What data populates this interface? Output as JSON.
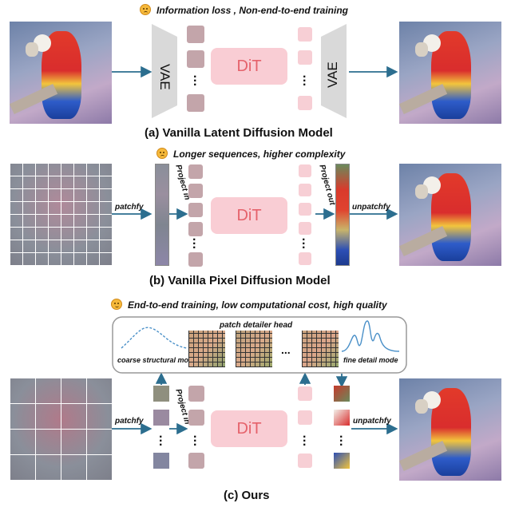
{
  "panel_a": {
    "note": "Information loss , Non-end-to-end training",
    "encoder_label": "VAE",
    "decoder_label": "VAE",
    "dit_label": "DiT",
    "caption": "(a) Vanilla Latent Diffusion Model"
  },
  "panel_b": {
    "note": "Longer sequences, higher complexity",
    "patchfy_label": "patchfy",
    "project_in_label": "Project in",
    "project_out_label": "Project out",
    "dit_label": "DiT",
    "unpatchfy_label": "unpatchfy",
    "caption": "(b) Vanilla Pixel Diffusion Model"
  },
  "panel_c": {
    "note": "End-to-end training, low computational cost, high quality",
    "head_title": "patch detailer head",
    "coarse_label": "coarse structural mode",
    "fine_label": "fine detail mode",
    "ellipsis": "...",
    "patchfy_label": "patchfy",
    "project_in_label": "Project in",
    "dit_label": "DiT",
    "unpatchfy_label": "unpatchfy",
    "caption": "(c) Ours"
  },
  "colors": {
    "arrow": "#2c6e8f",
    "dit_fill": "#f9cdd4",
    "dit_text": "#e5626b",
    "vae_fill": "#d9d9d9",
    "latent_token": "#c3a5aa",
    "pixel_token": "#f7cfd5",
    "curve": "#4a90c8"
  }
}
